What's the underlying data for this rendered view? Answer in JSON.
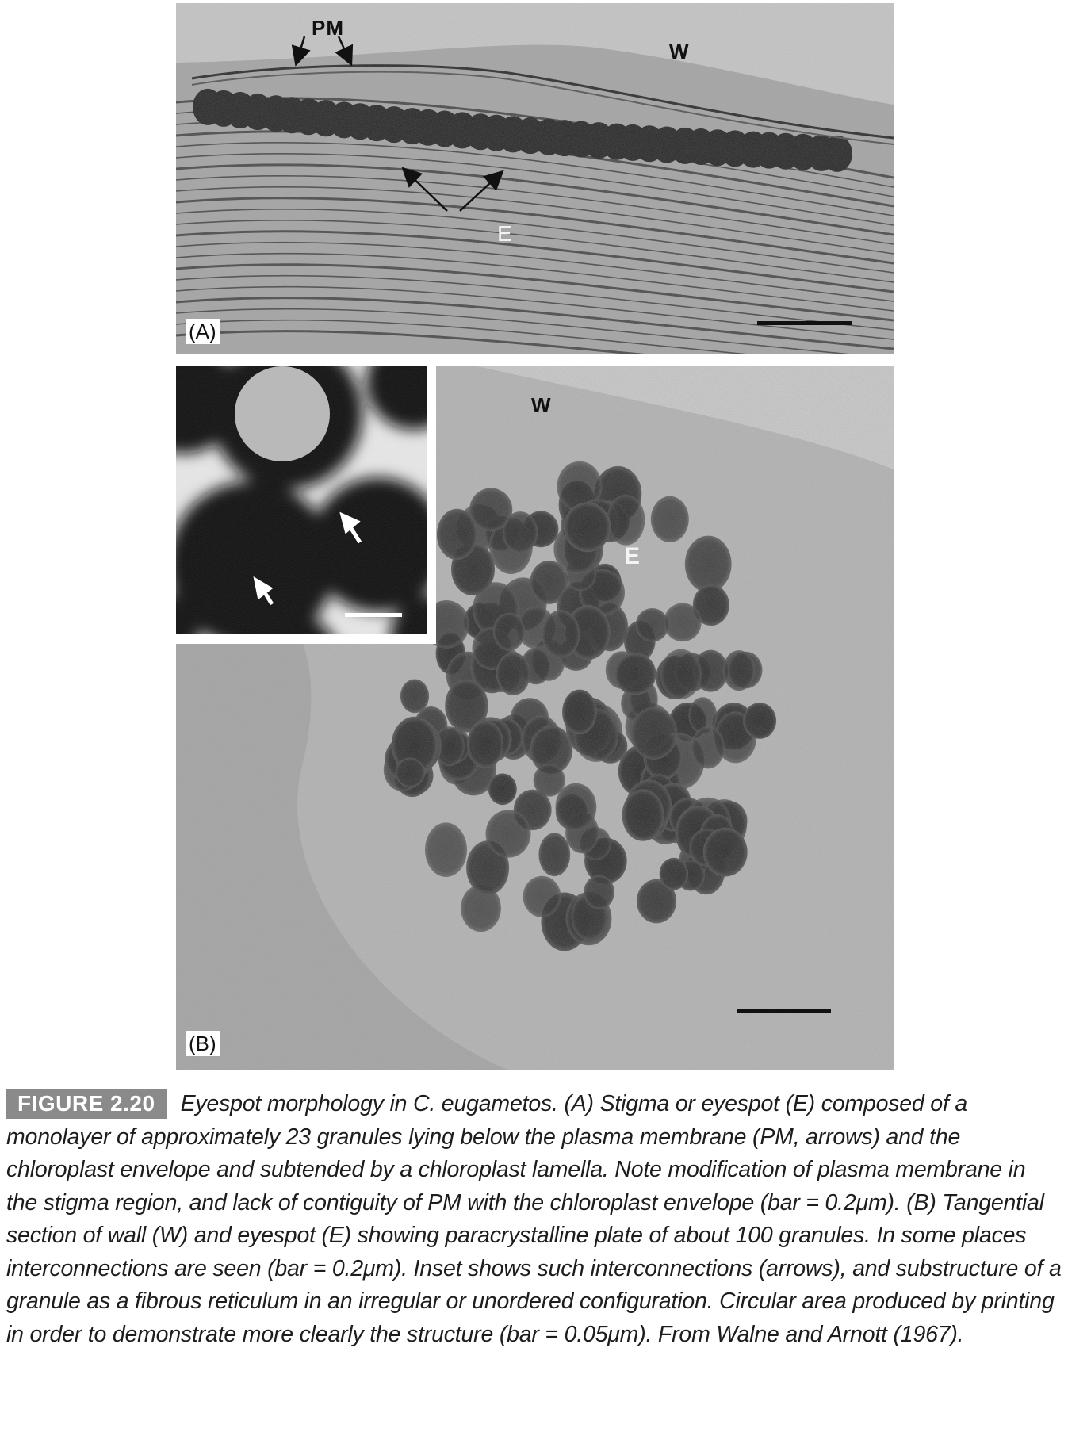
{
  "panel_a": {
    "tag": "(A)",
    "labels": {
      "pm": "PM",
      "w": "W",
      "e": "E"
    }
  },
  "panel_b": {
    "tag": "(B)",
    "labels": {
      "w": "W",
      "e": "E"
    }
  },
  "caption": {
    "figure_label": "FIGURE 2.20",
    "text": "Eyespot morphology in C. eugametos. (A) Stigma or eyespot (E) composed of a monolayer of approximately 23 granules lying below the plasma membrane (PM, arrows) and the chloroplast envelope and subtended by a chloroplast lamella. Note modification of plasma membrane in the stigma region, and lack of contiguity of PM with the chloroplast envelope (bar = 0.2μm). (B) Tangential section of wall (W) and eyespot (E) showing paracrystalline plate of about 100 granules. In some places interconnections are seen (bar = 0.2μm). Inset shows such interconnections (arrows), and substructure of a granule as a fibrous reticulum in an irregular or unordered configuration. Circular area produced by printing in order to demonstrate more clearly the structure (bar = 0.05μm). From Walne and Arnott (1967)."
  }
}
